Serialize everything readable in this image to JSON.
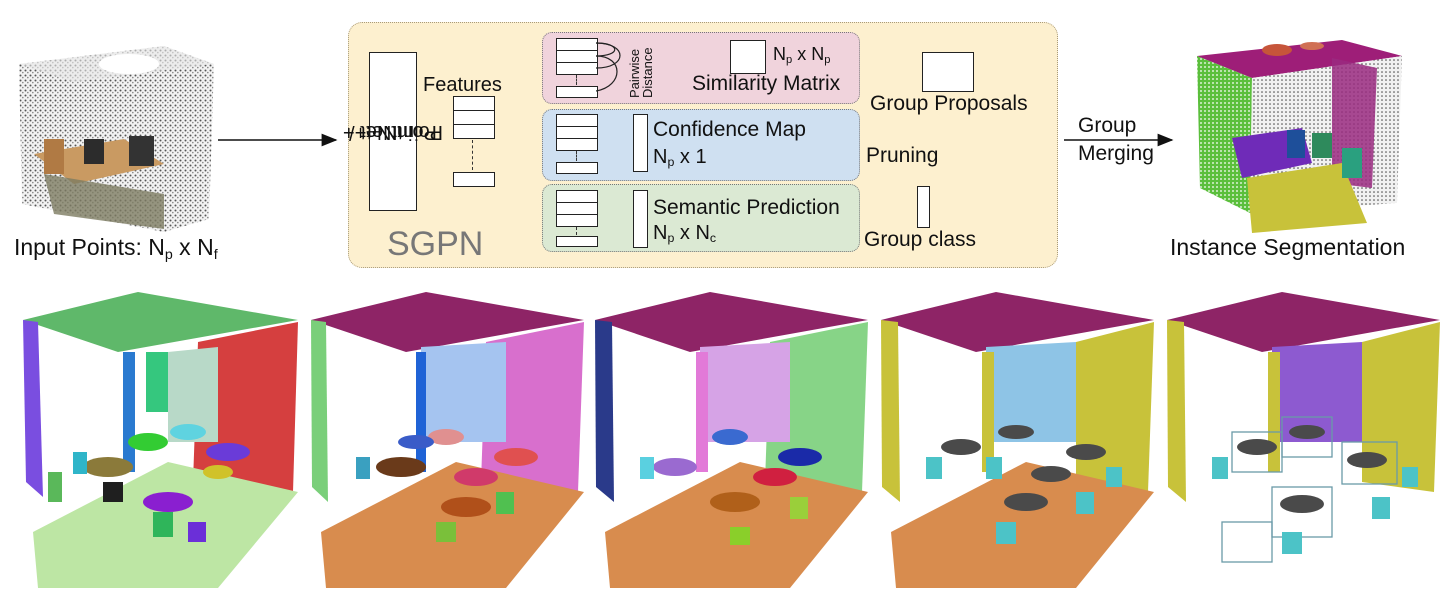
{
  "top": {
    "input_label": "Input Points: N",
    "input_sub1": "p",
    "input_mid": " x N",
    "input_sub2": "f",
    "output_label": "Instance Segmentation",
    "merge_line1": "Group",
    "merge_line2": "Merging"
  },
  "sgpn": {
    "title": "SGPN",
    "backbone_line1": "PointNet /",
    "backbone_line2": "PointNet++",
    "features": "Features",
    "pairwise": "Pairwise",
    "distance": "Distance",
    "sim_dims_a": "N",
    "sim_dims_sub_a": "p",
    "sim_dims_mid": " x N",
    "sim_dims_sub_b": "p",
    "similarity_matrix": "Similarity Matrix",
    "group_proposals": "Group Proposals",
    "confidence_map": "Confidence Map",
    "conf_dims_a": "N",
    "conf_dims_sub": "p",
    "conf_dims_rest": " x 1",
    "pruning": "Pruning",
    "semantic_prediction": "Semantic Prediction",
    "sem_dims_a": "N",
    "sem_dims_sub_a": "p",
    "sem_dims_mid": " x N",
    "sem_dims_sub_b": "c",
    "group_class": "Group class"
  },
  "colors": {
    "sgpn_bg": "#fdf0cf",
    "similarity_bg": "#f0d3dc",
    "confidence_bg": "#cfe0f1",
    "semantic_bg": "#dbe9d3",
    "ceiling_green": "#5fb86a",
    "ceiling_purple": "#8e2466",
    "floor_light_green": "#bde6a4",
    "floor_orange": "#d88c4e",
    "floor_yellow": "#c8c23a",
    "chair_cyan": "#4cc3c7",
    "table_gray": "#4a4a4a"
  }
}
